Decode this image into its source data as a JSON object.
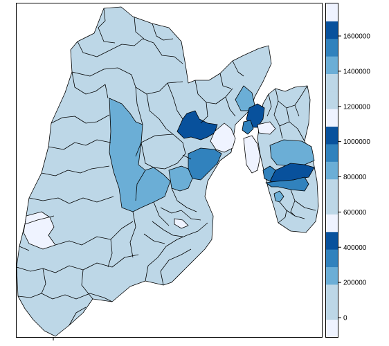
{
  "map": {
    "colors": {
      "c0": "#eff3ff",
      "c1": "#bdd7e7",
      "c2": "#6baed6",
      "c3": "#3182bd",
      "c4": "#08519c",
      "border": "#000000"
    }
  },
  "legend": {
    "bands": [
      {
        "color": "#eff3ff"
      },
      {
        "color": "#bdd7e7"
      },
      {
        "color": "#bdd7e7"
      },
      {
        "color": "#6baed6"
      },
      {
        "color": "#3182bd"
      },
      {
        "color": "#08519c"
      },
      {
        "color": "#eff3ff"
      },
      {
        "color": "#bdd7e7"
      },
      {
        "color": "#bdd7e7"
      },
      {
        "color": "#6baed6"
      },
      {
        "color": "#3182bd"
      },
      {
        "color": "#08519c"
      },
      {
        "color": "#eff3ff"
      },
      {
        "color": "#bdd7e7"
      },
      {
        "color": "#bdd7e7"
      },
      {
        "color": "#6baed6"
      },
      {
        "color": "#3182bd"
      },
      {
        "color": "#08519c"
      },
      {
        "color": "#eff3ff"
      }
    ],
    "ticks": [
      "0",
      "200000",
      "400000",
      "600000",
      "800000",
      "1000000",
      "1200000",
      "1400000",
      "1600000"
    ]
  }
}
